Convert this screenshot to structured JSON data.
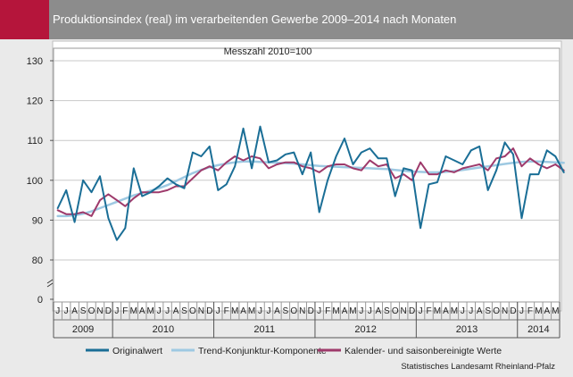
{
  "header": {
    "title": "Produktionsindex (real) im verarbeitenden Gewerbe 2009–2014 nach Monaten",
    "accent_color": "#b5153b",
    "bar_color": "#8c8c8c"
  },
  "source": "Statistisches Landesamt Rheinland-Pfalz",
  "chart_data": {
    "type": "line",
    "title": "",
    "subtitle": "Messzahl 2010=100",
    "xlabel": "",
    "ylabel": "",
    "ylim": [
      0,
      130
    ],
    "axis_break": [
      0,
      70
    ],
    "yticks": [
      0,
      80,
      90,
      100,
      110,
      120,
      130
    ],
    "grid": true,
    "legend_position": "bottom",
    "month_letters": [
      "J",
      "F",
      "M",
      "A",
      "M",
      "J",
      "J",
      "A",
      "S",
      "O",
      "N",
      "D"
    ],
    "years": [
      {
        "label": "2009",
        "first_month_index": 5,
        "months": 7
      },
      {
        "label": "2010",
        "first_month_index": 0,
        "months": 12
      },
      {
        "label": "2011",
        "first_month_index": 0,
        "months": 12
      },
      {
        "label": "2012",
        "first_month_index": 0,
        "months": 12
      },
      {
        "label": "2013",
        "first_month_index": 0,
        "months": 12
      },
      {
        "label": "2014",
        "first_month_index": 0,
        "months": 5
      }
    ],
    "series": [
      {
        "name": "Originalwert",
        "color": "#1a6e96",
        "width": 2,
        "values": [
          93,
          97.5,
          89.5,
          100,
          97,
          101,
          90.5,
          85,
          88,
          103,
          96,
          97,
          98.5,
          100.5,
          99,
          98,
          107,
          106,
          108.5,
          97.5,
          99,
          103.5,
          113,
          103,
          113.5,
          104.5,
          105,
          106.5,
          107,
          101.5,
          107,
          92,
          100,
          106,
          110.5,
          104,
          107,
          108,
          105.5,
          105.5,
          96,
          103,
          102.5,
          88,
          99,
          99.5,
          106,
          105,
          104,
          107.5,
          108.5,
          97.5,
          102.5,
          109.5,
          106.5,
          90.5,
          101.5,
          101.5,
          107.5,
          106,
          102
        ]
      },
      {
        "name": "Trend-Konjunktur-Komponente",
        "color": "#9ec9e2",
        "width": 2.5,
        "values": [
          91,
          91,
          91.2,
          91.6,
          92.2,
          93,
          93.8,
          94.6,
          95.4,
          96.2,
          96.8,
          97.4,
          98,
          98.8,
          99.8,
          100.8,
          101.8,
          102.6,
          103.3,
          103.8,
          104.2,
          104.5,
          104.7,
          104.7,
          104.6,
          104.5,
          104.4,
          104.3,
          104.2,
          104,
          103.8,
          103.6,
          103.5,
          103.4,
          103.3,
          103.2,
          103.1,
          103,
          102.9,
          102.8,
          102.6,
          102.4,
          102.2,
          102.1,
          102,
          102,
          102.1,
          102.3,
          102.6,
          102.9,
          103.2,
          103.5,
          103.8,
          104.1,
          104.4,
          104.6,
          104.7,
          104.7,
          104.6,
          104.5,
          104.4
        ]
      },
      {
        "name": "Kalender- und saisonbereinigte Werte",
        "color": "#9e3a6b",
        "width": 2,
        "values": [
          92.5,
          91.5,
          91.5,
          92,
          91,
          95,
          96.5,
          95,
          93.5,
          95.5,
          97,
          97,
          97,
          97.5,
          98.5,
          98.5,
          100.5,
          102.5,
          103.5,
          102.5,
          104.5,
          106,
          105,
          106,
          105.5,
          103,
          104,
          104.5,
          104.5,
          103.5,
          103,
          102,
          103.5,
          104,
          104,
          103,
          102.5,
          105,
          103.5,
          104,
          100.5,
          101.5,
          100,
          104.5,
          101.5,
          101.5,
          102.5,
          102,
          103,
          103.5,
          104,
          102.5,
          105.5,
          106,
          108,
          103.5,
          105.5,
          104,
          103,
          104,
          102.5
        ]
      }
    ]
  }
}
